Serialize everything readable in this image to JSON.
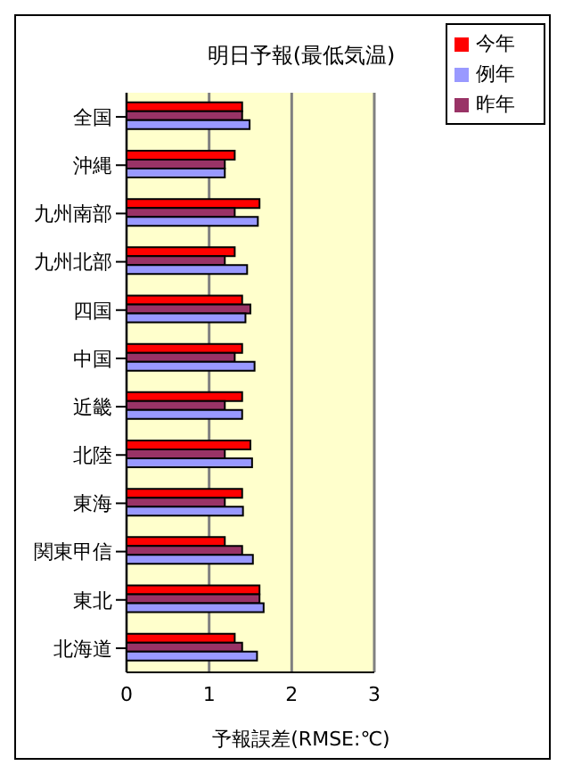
{
  "chart_data": {
    "type": "bar",
    "orientation": "horizontal",
    "title": "明日予報(最低気温)",
    "xlabel": "予報誤差(RMSE:℃)",
    "categories": [
      "全国",
      "沖縄",
      "九州南部",
      "九州北部",
      "四国",
      "中国",
      "近畿",
      "北陸",
      "東海",
      "関東甲信",
      "東北",
      "北海道"
    ],
    "series": [
      {
        "name": "今年",
        "color": "#ff0000",
        "values": [
          1.4,
          1.31,
          1.61,
          1.31,
          1.4,
          1.4,
          1.4,
          1.5,
          1.4,
          1.19,
          1.61,
          1.31
        ]
      },
      {
        "name": "昨年",
        "color": "#993366",
        "values": [
          1.4,
          1.19,
          1.31,
          1.19,
          1.5,
          1.31,
          1.19,
          1.19,
          1.19,
          1.4,
          1.61,
          1.4
        ]
      },
      {
        "name": "例年",
        "color": "#9999ff",
        "values": [
          1.49,
          1.19,
          1.59,
          1.46,
          1.44,
          1.55,
          1.4,
          1.52,
          1.41,
          1.53,
          1.66,
          1.58
        ]
      }
    ],
    "xlim": [
      0,
      3
    ],
    "xticks": [
      0,
      1,
      2,
      3
    ],
    "grid": "x",
    "legend": "top right"
  }
}
